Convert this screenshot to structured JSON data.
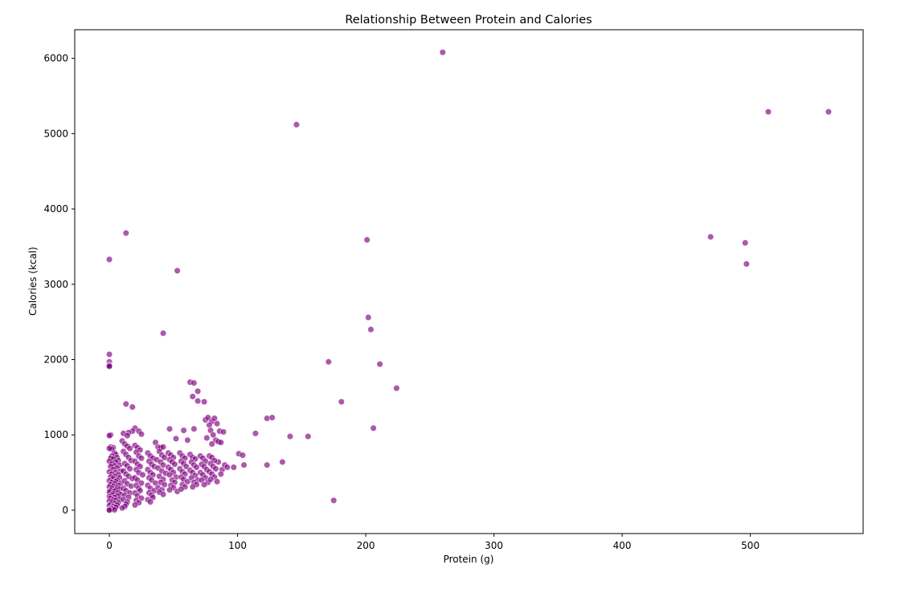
{
  "chart_data": {
    "type": "scatter",
    "title": "Relationship Between Protein and Calories",
    "xlabel": "Protein (g)",
    "ylabel": "Calories (kcal)",
    "xlim": [
      -27,
      588
    ],
    "ylim": [
      -310,
      6380
    ],
    "xticks": [
      0,
      100,
      200,
      300,
      400,
      500
    ],
    "yticks": [
      0,
      1000,
      2000,
      3000,
      4000,
      5000,
      6000
    ],
    "grid": false,
    "legend": "none",
    "marker_color": "#800080",
    "marker_edge_color": "#ffffff",
    "marker_opacity": 0.65,
    "points": [
      [
        260,
        6080
      ],
      [
        146,
        5120
      ],
      [
        514,
        5290
      ],
      [
        561,
        5290
      ],
      [
        469,
        3630
      ],
      [
        496,
        3550
      ],
      [
        497,
        3270
      ],
      [
        13,
        3680
      ],
      [
        0,
        3330
      ],
      [
        53,
        3180
      ],
      [
        201,
        3590
      ],
      [
        42,
        2350
      ],
      [
        202,
        2560
      ],
      [
        204,
        2400
      ],
      [
        211,
        1940
      ],
      [
        224,
        1620
      ],
      [
        171,
        1970
      ],
      [
        181,
        1440
      ],
      [
        206,
        1090
      ],
      [
        175,
        130
      ],
      [
        135,
        640
      ],
      [
        155,
        980
      ],
      [
        141,
        980
      ],
      [
        114,
        1020
      ],
      [
        123,
        1220
      ],
      [
        127,
        1230
      ],
      [
        123,
        600
      ],
      [
        0,
        2070
      ],
      [
        0,
        1970
      ],
      [
        0,
        1930
      ],
      [
        0,
        1920
      ],
      [
        0,
        1910
      ],
      [
        63,
        1700
      ],
      [
        66,
        1690
      ],
      [
        69,
        1580
      ],
      [
        65,
        1510
      ],
      [
        74,
        1440
      ],
      [
        69,
        1450
      ],
      [
        13,
        1410
      ],
      [
        18,
        1370
      ],
      [
        101,
        750
      ],
      [
        104,
        730
      ],
      [
        105,
        600
      ],
      [
        97,
        570
      ],
      [
        88,
        540
      ],
      [
        90,
        600
      ],
      [
        92,
        570
      ],
      [
        87,
        480
      ],
      [
        85,
        640
      ],
      [
        75,
        1200
      ],
      [
        77,
        1230
      ],
      [
        80,
        1180
      ],
      [
        82,
        1220
      ],
      [
        78,
        1130
      ],
      [
        84,
        1150
      ],
      [
        79,
        1060
      ],
      [
        86,
        1050
      ],
      [
        89,
        1040
      ],
      [
        81,
        1000
      ],
      [
        76,
        960
      ],
      [
        83,
        930
      ],
      [
        85,
        910
      ],
      [
        87,
        900
      ],
      [
        80,
        880
      ],
      [
        47,
        1080
      ],
      [
        58,
        1060
      ],
      [
        66,
        1080
      ],
      [
        52,
        950
      ],
      [
        61,
        930
      ],
      [
        20,
        1090
      ],
      [
        18,
        1050
      ],
      [
        23,
        1050
      ],
      [
        15,
        1030
      ],
      [
        11,
        1020
      ],
      [
        25,
        1010
      ],
      [
        14,
        990
      ],
      [
        1,
        1000
      ],
      [
        0,
        990
      ],
      [
        1,
        840
      ],
      [
        3,
        830
      ],
      [
        2,
        810
      ],
      [
        0,
        820
      ],
      [
        4,
        760
      ],
      [
        5,
        740
      ],
      [
        2,
        720
      ],
      [
        6,
        700
      ],
      [
        1,
        690
      ],
      [
        3,
        680
      ],
      [
        7,
        660
      ],
      [
        0,
        650
      ],
      [
        5,
        640
      ],
      [
        2,
        620
      ],
      [
        8,
        600
      ],
      [
        4,
        590
      ],
      [
        1,
        580
      ],
      [
        6,
        560
      ],
      [
        3,
        540
      ],
      [
        9,
        520
      ],
      [
        0,
        510
      ],
      [
        5,
        500
      ],
      [
        2,
        480
      ],
      [
        7,
        470
      ],
      [
        4,
        450
      ],
      [
        1,
        440
      ],
      [
        8,
        430
      ],
      [
        3,
        420
      ],
      [
        6,
        400
      ],
      [
        0,
        390
      ],
      [
        5,
        380
      ],
      [
        2,
        370
      ],
      [
        9,
        360
      ],
      [
        4,
        350
      ],
      [
        1,
        340
      ],
      [
        7,
        330
      ],
      [
        3,
        320
      ],
      [
        0,
        310
      ],
      [
        6,
        300
      ],
      [
        2,
        290
      ],
      [
        8,
        280
      ],
      [
        5,
        270
      ],
      [
        1,
        260
      ],
      [
        4,
        250
      ],
      [
        0,
        240
      ],
      [
        7,
        230
      ],
      [
        3,
        220
      ],
      [
        9,
        210
      ],
      [
        2,
        200
      ],
      [
        6,
        190
      ],
      [
        0,
        180
      ],
      [
        4,
        170
      ],
      [
        1,
        160
      ],
      [
        8,
        150
      ],
      [
        3,
        140
      ],
      [
        5,
        130
      ],
      [
        0,
        120
      ],
      [
        2,
        110
      ],
      [
        7,
        100
      ],
      [
        4,
        90
      ],
      [
        1,
        80
      ],
      [
        6,
        70
      ],
      [
        0,
        60
      ],
      [
        3,
        50
      ],
      [
        5,
        40
      ],
      [
        1,
        30
      ],
      [
        2,
        20
      ],
      [
        0,
        10
      ],
      [
        4,
        5
      ],
      [
        0,
        0
      ],
      [
        10,
        920
      ],
      [
        12,
        880
      ],
      [
        14,
        850
      ],
      [
        16,
        820
      ],
      [
        11,
        780
      ],
      [
        13,
        740
      ],
      [
        15,
        700
      ],
      [
        17,
        660
      ],
      [
        12,
        620
      ],
      [
        14,
        590
      ],
      [
        16,
        550
      ],
      [
        11,
        520
      ],
      [
        13,
        480
      ],
      [
        15,
        450
      ],
      [
        18,
        420
      ],
      [
        12,
        390
      ],
      [
        14,
        350
      ],
      [
        17,
        320
      ],
      [
        11,
        290
      ],
      [
        13,
        260
      ],
      [
        16,
        230
      ],
      [
        12,
        200
      ],
      [
        15,
        170
      ],
      [
        11,
        140
      ],
      [
        14,
        110
      ],
      [
        13,
        80
      ],
      [
        12,
        50
      ],
      [
        10,
        30
      ],
      [
        20,
        860
      ],
      [
        22,
        830
      ],
      [
        24,
        800
      ],
      [
        21,
        770
      ],
      [
        23,
        720
      ],
      [
        25,
        690
      ],
      [
        20,
        650
      ],
      [
        22,
        610
      ],
      [
        24,
        580
      ],
      [
        21,
        540
      ],
      [
        23,
        500
      ],
      [
        26,
        470
      ],
      [
        20,
        430
      ],
      [
        22,
        400
      ],
      [
        25,
        360
      ],
      [
        21,
        330
      ],
      [
        23,
        290
      ],
      [
        24,
        260
      ],
      [
        20,
        230
      ],
      [
        22,
        190
      ],
      [
        25,
        160
      ],
      [
        21,
        130
      ],
      [
        23,
        100
      ],
      [
        20,
        70
      ],
      [
        30,
        760
      ],
      [
        32,
        720
      ],
      [
        34,
        690
      ],
      [
        31,
        650
      ],
      [
        33,
        610
      ],
      [
        35,
        580
      ],
      [
        30,
        540
      ],
      [
        32,
        500
      ],
      [
        34,
        470
      ],
      [
        31,
        430
      ],
      [
        33,
        400
      ],
      [
        36,
        360
      ],
      [
        30,
        330
      ],
      [
        32,
        290
      ],
      [
        35,
        260
      ],
      [
        31,
        230
      ],
      [
        33,
        200
      ],
      [
        34,
        170
      ],
      [
        30,
        140
      ],
      [
        32,
        110
      ],
      [
        36,
        900
      ],
      [
        38,
        840
      ],
      [
        40,
        830
      ],
      [
        42,
        840
      ],
      [
        39,
        780
      ],
      [
        41,
        730
      ],
      [
        43,
        700
      ],
      [
        37,
        670
      ],
      [
        40,
        640
      ],
      [
        42,
        600
      ],
      [
        38,
        560
      ],
      [
        41,
        520
      ],
      [
        44,
        490
      ],
      [
        39,
        450
      ],
      [
        42,
        410
      ],
      [
        40,
        370
      ],
      [
        43,
        340
      ],
      [
        38,
        300
      ],
      [
        41,
        270
      ],
      [
        39,
        240
      ],
      [
        42,
        210
      ],
      [
        46,
        760
      ],
      [
        48,
        730
      ],
      [
        50,
        700
      ],
      [
        47,
        670
      ],
      [
        49,
        640
      ],
      [
        51,
        610
      ],
      [
        46,
        570
      ],
      [
        48,
        540
      ],
      [
        50,
        500
      ],
      [
        47,
        470
      ],
      [
        52,
        440
      ],
      [
        49,
        400
      ],
      [
        51,
        370
      ],
      [
        48,
        330
      ],
      [
        50,
        300
      ],
      [
        47,
        270
      ],
      [
        53,
        250
      ],
      [
        55,
        760
      ],
      [
        57,
        720
      ],
      [
        59,
        690
      ],
      [
        56,
        650
      ],
      [
        58,
        620
      ],
      [
        60,
        580
      ],
      [
        55,
        550
      ],
      [
        57,
        510
      ],
      [
        59,
        480
      ],
      [
        56,
        440
      ],
      [
        58,
        410
      ],
      [
        61,
        380
      ],
      [
        57,
        340
      ],
      [
        59,
        310
      ],
      [
        56,
        280
      ],
      [
        63,
        740
      ],
      [
        65,
        700
      ],
      [
        67,
        680
      ],
      [
        64,
        640
      ],
      [
        66,
        600
      ],
      [
        68,
        570
      ],
      [
        63,
        530
      ],
      [
        65,
        500
      ],
      [
        67,
        460
      ],
      [
        64,
        430
      ],
      [
        69,
        400
      ],
      [
        66,
        370
      ],
      [
        68,
        340
      ],
      [
        65,
        310
      ],
      [
        71,
        720
      ],
      [
        73,
        690
      ],
      [
        75,
        650
      ],
      [
        72,
        610
      ],
      [
        74,
        580
      ],
      [
        76,
        540
      ],
      [
        71,
        500
      ],
      [
        73,
        470
      ],
      [
        75,
        430
      ],
      [
        72,
        400
      ],
      [
        77,
        370
      ],
      [
        74,
        340
      ],
      [
        78,
        720
      ],
      [
        80,
        700
      ],
      [
        82,
        660
      ],
      [
        79,
        620
      ],
      [
        81,
        580
      ],
      [
        83,
        550
      ],
      [
        78,
        510
      ],
      [
        80,
        480
      ],
      [
        82,
        440
      ],
      [
        79,
        410
      ],
      [
        84,
        380
      ]
    ]
  }
}
